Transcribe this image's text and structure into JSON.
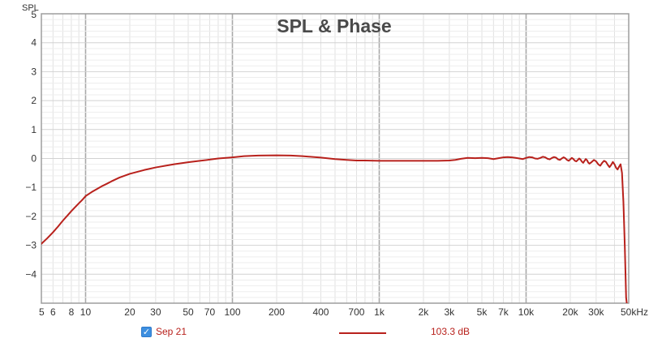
{
  "chart_data": {
    "type": "line",
    "title": "SPL & Phase",
    "ylabel": "SPL",
    "xlabel": "",
    "x_scale": "log",
    "xlim": [
      5,
      50000
    ],
    "ylim": [
      -5,
      5
    ],
    "grid": true,
    "x_major_ticks": [
      10,
      100,
      1000,
      10000
    ],
    "x_tick_labels": [
      {
        "value": 5,
        "label": "5"
      },
      {
        "value": 6,
        "label": "6"
      },
      {
        "value": 8,
        "label": "8"
      },
      {
        "value": 10,
        "label": "10"
      },
      {
        "value": 20,
        "label": "20"
      },
      {
        "value": 30,
        "label": "30"
      },
      {
        "value": 50,
        "label": "50"
      },
      {
        "value": 70,
        "label": "70"
      },
      {
        "value": 100,
        "label": "100"
      },
      {
        "value": 200,
        "label": "200"
      },
      {
        "value": 400,
        "label": "400"
      },
      {
        "value": 700,
        "label": "700"
      },
      {
        "value": 1000,
        "label": "1k"
      },
      {
        "value": 2000,
        "label": "2k"
      },
      {
        "value": 3000,
        "label": "3k"
      },
      {
        "value": 5000,
        "label": "5k"
      },
      {
        "value": 7000,
        "label": "7k"
      },
      {
        "value": 10000,
        "label": "10k"
      },
      {
        "value": 20000,
        "label": "20k"
      },
      {
        "value": 30000,
        "label": "30k"
      },
      {
        "value": 50000,
        "label": "50kHz"
      }
    ],
    "y_ticks": [
      {
        "value": 5,
        "label": "5"
      },
      {
        "value": 4,
        "label": "4"
      },
      {
        "value": 3,
        "label": "3"
      },
      {
        "value": 2,
        "label": "2"
      },
      {
        "value": 1,
        "label": "1"
      },
      {
        "value": 0,
        "label": "0"
      },
      {
        "value": -1,
        "label": "−1"
      },
      {
        "value": -2,
        "label": "−2"
      },
      {
        "value": -3,
        "label": "−3"
      },
      {
        "value": -4,
        "label": "−4"
      }
    ],
    "series": [
      {
        "name": "Sep 21",
        "color": "#b8211c",
        "value_label": "103.3 dB",
        "points": [
          [
            5,
            -2.95
          ],
          [
            5.5,
            -2.75
          ],
          [
            6,
            -2.55
          ],
          [
            6.5,
            -2.35
          ],
          [
            7,
            -2.15
          ],
          [
            7.5,
            -1.98
          ],
          [
            8,
            -1.82
          ],
          [
            8.5,
            -1.68
          ],
          [
            9,
            -1.55
          ],
          [
            9.5,
            -1.43
          ],
          [
            10,
            -1.3
          ],
          [
            11,
            -1.16
          ],
          [
            12,
            -1.05
          ],
          [
            13,
            -0.95
          ],
          [
            14,
            -0.87
          ],
          [
            15,
            -0.79
          ],
          [
            17,
            -0.66
          ],
          [
            20,
            -0.53
          ],
          [
            25,
            -0.4
          ],
          [
            30,
            -0.31
          ],
          [
            40,
            -0.2
          ],
          [
            50,
            -0.13
          ],
          [
            60,
            -0.08
          ],
          [
            70,
            -0.04
          ],
          [
            80,
            0.0
          ],
          [
            100,
            0.04
          ],
          [
            120,
            0.08
          ],
          [
            150,
            0.1
          ],
          [
            200,
            0.11
          ],
          [
            250,
            0.1
          ],
          [
            300,
            0.08
          ],
          [
            400,
            0.03
          ],
          [
            500,
            -0.02
          ],
          [
            600,
            -0.05
          ],
          [
            700,
            -0.07
          ],
          [
            800,
            -0.07
          ],
          [
            1000,
            -0.08
          ],
          [
            1300,
            -0.08
          ],
          [
            1600,
            -0.08
          ],
          [
            2000,
            -0.08
          ],
          [
            2500,
            -0.08
          ],
          [
            3000,
            -0.07
          ],
          [
            3300,
            -0.05
          ],
          [
            3600,
            -0.01
          ],
          [
            4000,
            0.02
          ],
          [
            4500,
            0.01
          ],
          [
            5000,
            0.02
          ],
          [
            5500,
            0.01
          ],
          [
            6000,
            -0.02
          ],
          [
            6500,
            0.01
          ],
          [
            7000,
            0.04
          ],
          [
            7500,
            0.05
          ],
          [
            8000,
            0.04
          ],
          [
            8500,
            0.02
          ],
          [
            9000,
            0.0
          ],
          [
            9500,
            -0.02
          ],
          [
            10000,
            0.02
          ],
          [
            10500,
            0.05
          ],
          [
            11000,
            0.04
          ],
          [
            11500,
            0.0
          ],
          [
            12000,
            -0.01
          ],
          [
            12500,
            0.02
          ],
          [
            13000,
            0.06
          ],
          [
            13500,
            0.04
          ],
          [
            14000,
            -0.01
          ],
          [
            14500,
            -0.03
          ],
          [
            15000,
            0.02
          ],
          [
            15500,
            0.05
          ],
          [
            16000,
            0.03
          ],
          [
            16500,
            -0.03
          ],
          [
            17000,
            -0.05
          ],
          [
            17500,
            0.0
          ],
          [
            18000,
            0.04
          ],
          [
            18500,
            0.01
          ],
          [
            19000,
            -0.05
          ],
          [
            19500,
            -0.08
          ],
          [
            20000,
            -0.03
          ],
          [
            20500,
            0.02
          ],
          [
            21000,
            -0.02
          ],
          [
            21500,
            -0.08
          ],
          [
            22000,
            -0.1
          ],
          [
            22500,
            -0.05
          ],
          [
            23000,
            0.0
          ],
          [
            23500,
            -0.04
          ],
          [
            24000,
            -0.11
          ],
          [
            24500,
            -0.15
          ],
          [
            25000,
            -0.08
          ],
          [
            25500,
            -0.02
          ],
          [
            26000,
            -0.06
          ],
          [
            26500,
            -0.14
          ],
          [
            27000,
            -0.18
          ],
          [
            28000,
            -0.12
          ],
          [
            29000,
            -0.05
          ],
          [
            30000,
            -0.1
          ],
          [
            31000,
            -0.2
          ],
          [
            32000,
            -0.25
          ],
          [
            33000,
            -0.15
          ],
          [
            34000,
            -0.08
          ],
          [
            35000,
            -0.12
          ],
          [
            36000,
            -0.22
          ],
          [
            37000,
            -0.3
          ],
          [
            38000,
            -0.22
          ],
          [
            39000,
            -0.12
          ],
          [
            40000,
            -0.2
          ],
          [
            41000,
            -0.32
          ],
          [
            42000,
            -0.38
          ],
          [
            43000,
            -0.28
          ],
          [
            44000,
            -0.2
          ],
          [
            45000,
            -0.5
          ],
          [
            46000,
            -1.5
          ],
          [
            47000,
            -3.0
          ],
          [
            48000,
            -4.8
          ],
          [
            48500,
            -5.0
          ]
        ]
      }
    ]
  },
  "legend": {
    "checkbox_checked": true,
    "series_name": "Sep 21",
    "value_label": "103.3 dB",
    "color": "#b8211c"
  }
}
